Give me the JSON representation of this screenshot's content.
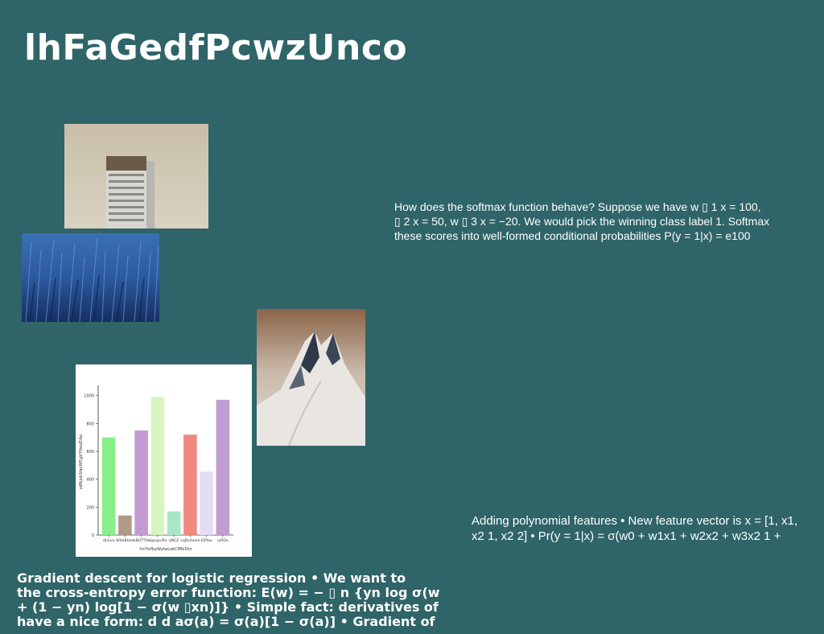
{
  "title": "lhFaGedfPcwzUnco",
  "softmax_text": "How does the softmax function behave? Suppose we have w ▯ 1 x = 100,\n▯ 2 x = 50, w ▯ 3 x = −20. We would pick the winning class label 1. Softmax\nthese scores into well-formed conditional probabilities P(y = 1|x) = e100",
  "poly_text": "Adding polynomial features • New feature vector is x = [1, x1,\nx2 1, x2 2] • Pr(y = 1|x) = σ(w0 + w1x1 + w2x2 + w3x2 1 +",
  "gd_text": "Gradient descent for logistic regression • We want to\nthe cross-entropy error function: E(w) = − ▯ n {yn log σ(w\n+ (1 − yn) log[1 − σ(w ▯xn)]} • Simple fact: derivatives of\nhave a nice form: d d aσ(a) = σ(a)[1 − σ(a)] • Gradient of",
  "images": {
    "building": "photo of a tall building against a pale sky",
    "grass": "photo of blue-tinted tall grass",
    "mountain": "photo of snowy mountain peak"
  },
  "chart_data": {
    "type": "bar",
    "categories": [
      "dLGvo",
      "WSeBUoe",
      "sBUTTfe",
      "dppopvRz",
      "aNCZ",
      "cqDsAovle",
      "EDYau",
      "iyRDa"
    ],
    "values": [
      700,
      140,
      750,
      990,
      170,
      720,
      455,
      970
    ],
    "colors": [
      "#88ee88",
      "#b09a86",
      "#c39bd3",
      "#d6f5c0",
      "#a8e6c6",
      "#f08a80",
      "#e2dcf5",
      "#c39bd3"
    ],
    "xlabel": "hnYlvfbyWylwLwtCfMxDtn",
    "ylabel": "zdfbjuUVqvWFjgVYNeuEiAp",
    "ylim": [
      0,
      1050
    ],
    "yticks": [
      0,
      200,
      400,
      600,
      800,
      1000
    ]
  }
}
